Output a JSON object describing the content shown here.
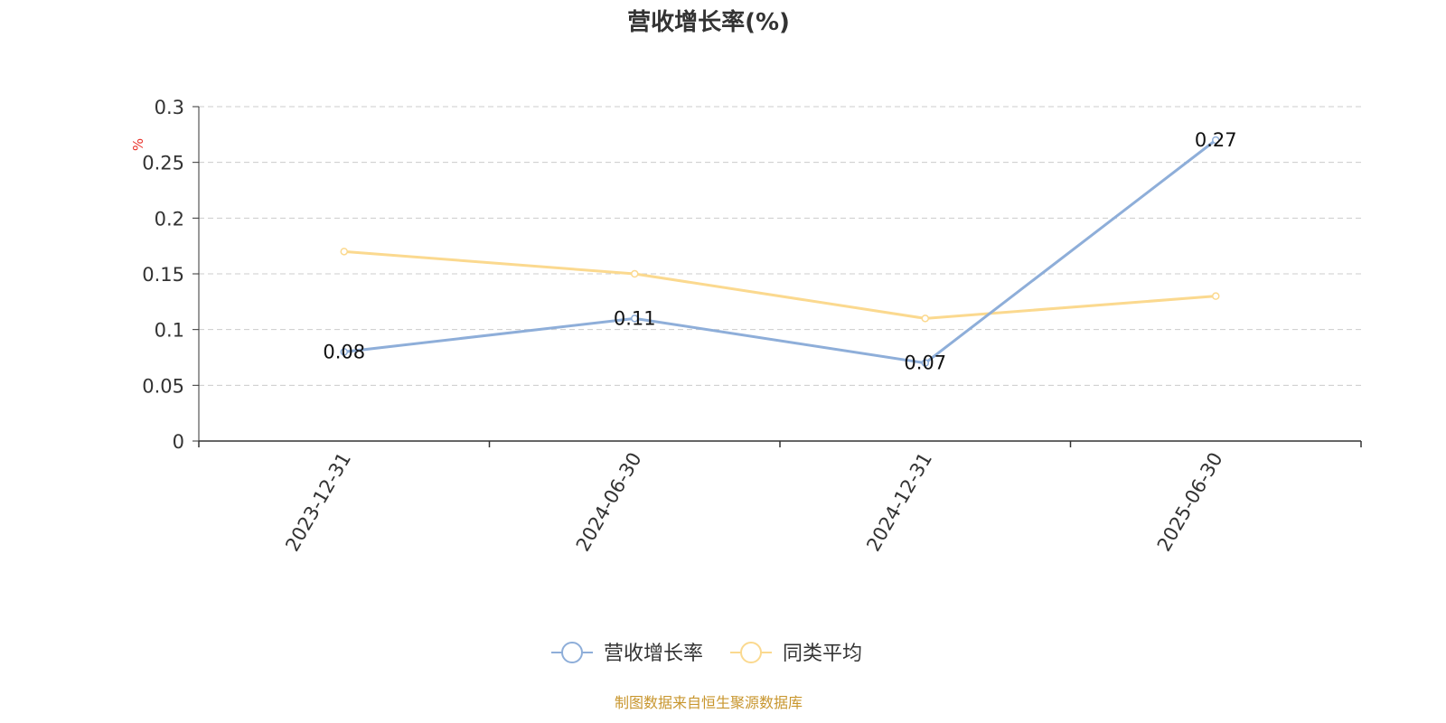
{
  "chart_data": {
    "type": "line",
    "title": "营收增长率(%)",
    "ylabel": "%",
    "categories": [
      "2023-12-31",
      "2024-06-30",
      "2024-12-31",
      "2025-06-30"
    ],
    "series": [
      {
        "name": "营收增长率",
        "values": [
          0.08,
          0.11,
          0.07,
          0.27
        ],
        "color": "#8eaed9",
        "data_labels": [
          "0.08",
          "0.11",
          "0.07",
          "0.27"
        ]
      },
      {
        "name": "同类平均",
        "values": [
          0.17,
          0.15,
          0.11,
          0.13
        ],
        "color": "#fbd98f"
      }
    ],
    "ylim": [
      0,
      0.3
    ],
    "yticks": [
      "0",
      "0.05",
      "0.1",
      "0.15",
      "0.2",
      "0.25",
      "0.3"
    ],
    "grid": true,
    "legend_position": "bottom"
  },
  "source_note": "制图数据来自恒生聚源数据库",
  "colors": {
    "ylabel": "#e8312a",
    "axis": "#333333",
    "grid": "#cccccc"
  }
}
